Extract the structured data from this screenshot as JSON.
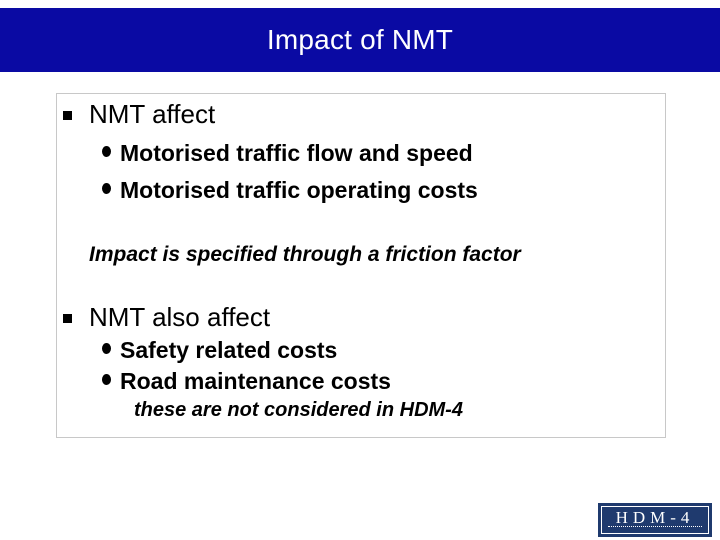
{
  "slide": {
    "title": "Impact of NMT",
    "sections": [
      {
        "heading": "NMT affect",
        "items": [
          "Motorised traffic flow and speed",
          "Motorised traffic operating costs"
        ]
      },
      {
        "heading": "NMT also affect",
        "items": [
          "Safety related costs",
          "Road maintenance costs"
        ]
      }
    ],
    "note_friction": "Impact is specified through a friction factor",
    "note_not_considered": "these are not considered in HDM-4"
  },
  "logo": {
    "text": "HDM-4"
  }
}
